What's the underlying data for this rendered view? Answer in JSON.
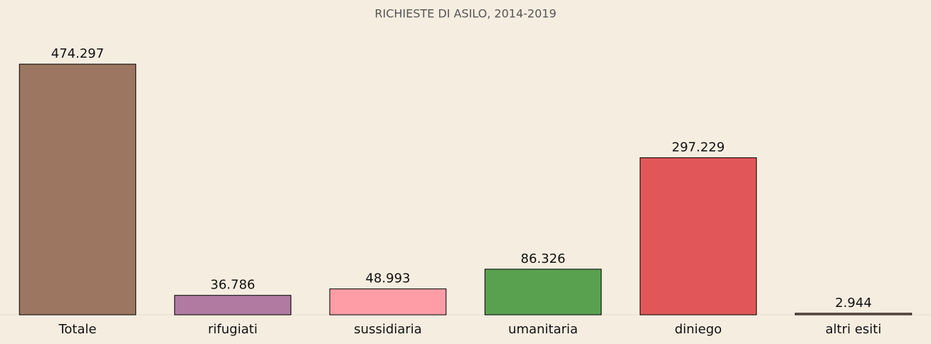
{
  "chart_data": {
    "type": "bar",
    "title": "RICHIESTE DI ASILO, 2014-2019",
    "categories": [
      "Totale",
      "rifugiati",
      "sussidiaria",
      "umanitaria",
      "diniego",
      "altri esiti"
    ],
    "values": [
      474297,
      36786,
      48993,
      86326,
      297229,
      2944
    ],
    "value_labels": [
      "474.297",
      "36.786",
      "48.993",
      "86.326",
      "297.229",
      "2.944"
    ],
    "colors": [
      "#9c7660",
      "#b07aa1",
      "#ff9da7",
      "#59a14f",
      "#e15759",
      "#9c7660"
    ],
    "ylim": [
      0,
      500000
    ]
  }
}
